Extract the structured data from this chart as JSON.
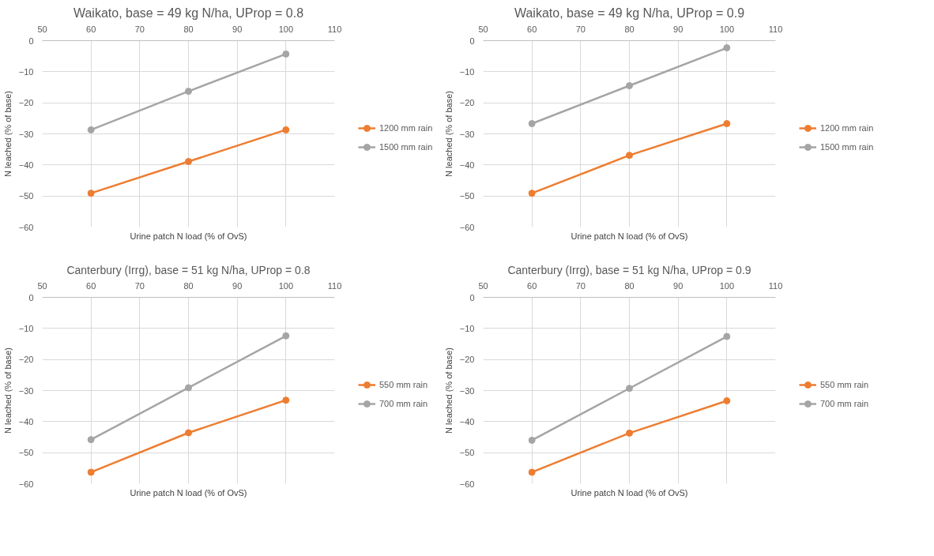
{
  "chart_data": [
    {
      "type": "line",
      "title": "Waikato, base = 49 kg N/ha, UProp = 0.8",
      "xlabel": "Urine patch N load (% of OvS)",
      "ylabel": "N leached (% of base)",
      "x": [
        60,
        80,
        100
      ],
      "xlim": [
        50,
        110
      ],
      "xticks": [
        50,
        60,
        70,
        80,
        90,
        100,
        110
      ],
      "ylim": [
        -60,
        0
      ],
      "yticks": [
        -60,
        -50,
        -40,
        -30,
        -20,
        -10,
        0
      ],
      "grid": true,
      "legend": "right",
      "marker": "circle",
      "series": [
        {
          "name": "1200 mm rain",
          "color": "#ed7d31",
          "values": [
            -49.1,
            -38.9,
            -28.7
          ]
        },
        {
          "name": "1500 mm rain",
          "color": "#a5a5a5",
          "values": [
            -28.7,
            -16.3,
            -4.3
          ]
        }
      ]
    },
    {
      "type": "line",
      "title": "Waikato, base = 49 kg N/ha, UProp = 0.9",
      "xlabel": "Urine patch N load (% of OvS)",
      "ylabel": "N leached (% of base)",
      "x": [
        60,
        80,
        100
      ],
      "xlim": [
        50,
        110
      ],
      "xticks": [
        50,
        60,
        70,
        80,
        90,
        100,
        110
      ],
      "ylim": [
        -60,
        0
      ],
      "yticks": [
        -60,
        -50,
        -40,
        -30,
        -20,
        -10,
        0
      ],
      "grid": true,
      "legend": "right",
      "marker": "circle",
      "series": [
        {
          "name": "1200 mm rain",
          "color": "#ed7d31",
          "values": [
            -49.1,
            -36.9,
            -26.7
          ]
        },
        {
          "name": "1500 mm rain",
          "color": "#a5a5a5",
          "values": [
            -26.7,
            -14.5,
            -2.3
          ]
        }
      ]
    },
    {
      "type": "line",
      "title": "Canterbury (Irrg), base = 51 kg N/ha, UProp = 0.8",
      "xlabel": "Urine patch N load (% of OvS)",
      "ylabel": "N leached (% of base)",
      "x": [
        60,
        80,
        100
      ],
      "xlim": [
        50,
        110
      ],
      "xticks": [
        50,
        60,
        70,
        80,
        90,
        100,
        110
      ],
      "ylim": [
        -60,
        0
      ],
      "yticks": [
        -60,
        -50,
        -40,
        -30,
        -20,
        -10,
        0
      ],
      "grid": true,
      "legend": "right",
      "marker": "circle",
      "series": [
        {
          "name": "550 mm rain",
          "color": "#ed7d31",
          "values": [
            -56.3,
            -43.6,
            -33.1
          ]
        },
        {
          "name": "700 mm rain",
          "color": "#a5a5a5",
          "values": [
            -45.8,
            -29.1,
            -12.4
          ]
        }
      ]
    },
    {
      "type": "line",
      "title": "Canterbury (Irrg), base = 51 kg N/ha, UProp = 0.9",
      "xlabel": "Urine patch N load (% of OvS)",
      "ylabel": "N leached (% of base)",
      "x": [
        60,
        80,
        100
      ],
      "xlim": [
        50,
        110
      ],
      "xticks": [
        50,
        60,
        70,
        80,
        90,
        100,
        110
      ],
      "ylim": [
        -60,
        0
      ],
      "yticks": [
        -60,
        -50,
        -40,
        -30,
        -20,
        -10,
        0
      ],
      "grid": true,
      "legend": "right",
      "marker": "circle",
      "series": [
        {
          "name": "550 mm rain",
          "color": "#ed7d31",
          "values": [
            -56.3,
            -43.7,
            -33.3
          ]
        },
        {
          "name": "700 mm rain",
          "color": "#a5a5a5",
          "values": [
            -46.0,
            -29.3,
            -12.6
          ]
        }
      ]
    }
  ]
}
